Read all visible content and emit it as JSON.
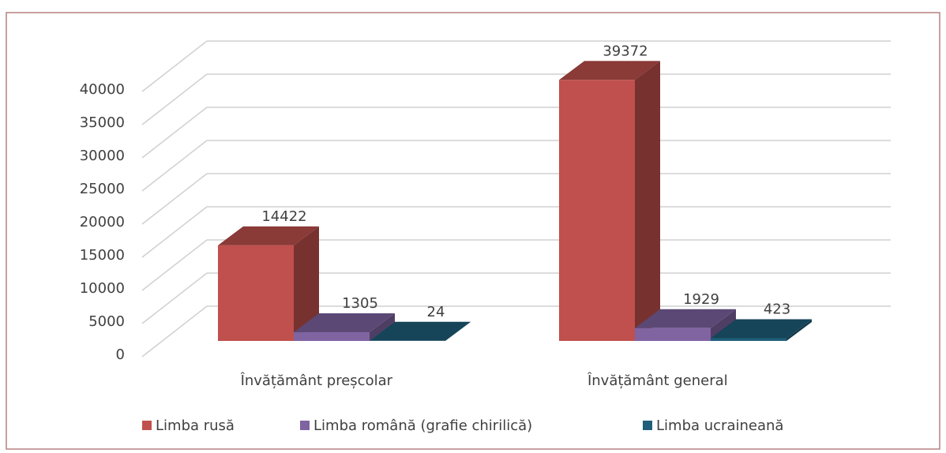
{
  "chart_data": {
    "type": "bar3d",
    "categories": [
      "Învățământ preșcolar",
      "Învățământ general"
    ],
    "series": [
      {
        "name": "Limba rusă",
        "color": "#c0504d",
        "values": [
          14422,
          39372
        ]
      },
      {
        "name": "Limba română (grafie chirilică)",
        "color": "#8064a2",
        "values": [
          1305,
          1929
        ]
      },
      {
        "name": "Limba ucraineană",
        "color": "#1f5f7a",
        "values": [
          24,
          423
        ]
      }
    ],
    "ylim": [
      0,
      40000
    ],
    "yticks": [
      0,
      5000,
      10000,
      15000,
      20000,
      25000,
      30000,
      35000,
      40000
    ],
    "grid": true,
    "legend": "bottom"
  }
}
